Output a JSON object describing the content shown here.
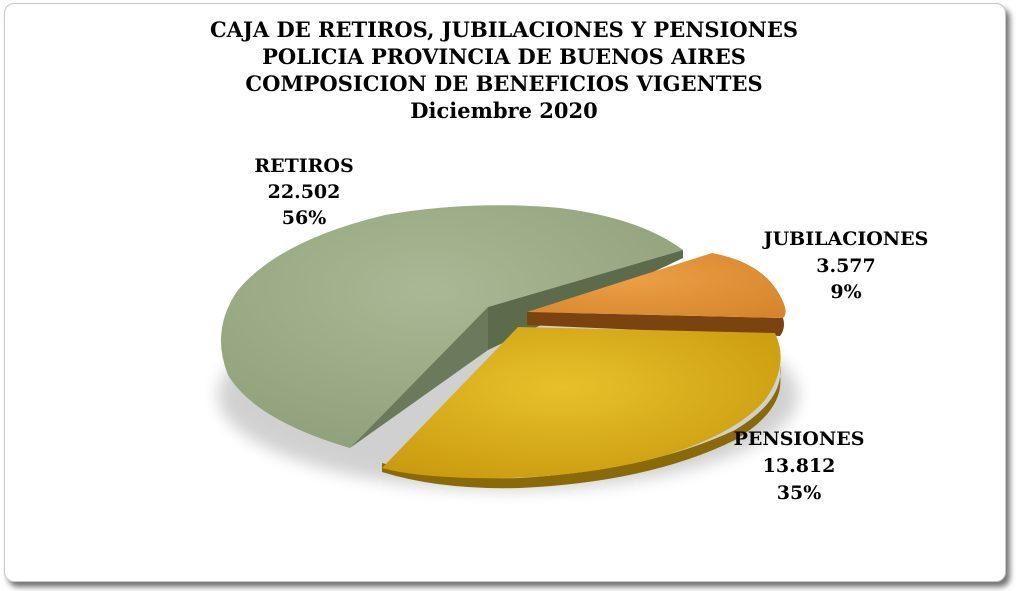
{
  "chart_data": {
    "type": "pie",
    "title_lines": [
      "CAJA DE RETIROS, JUBILACIONES Y PENSIONES",
      "POLICIA PROVINCIA DE BUENOS AIRES",
      "COMPOSICION DE BENEFICIOS VIGENTES",
      "Diciembre 2020"
    ],
    "slices": [
      {
        "label": "RETIROS",
        "value_text": "22.502",
        "value": 22502,
        "percent_text": "56%",
        "color": "#a3b38e"
      },
      {
        "label": "JUBILACIONES",
        "value_text": "3.577",
        "value": 3577,
        "percent_text": "9%",
        "color": "#e8993c"
      },
      {
        "label": "PENSIONES",
        "value_text": "13.812",
        "value": 13812,
        "percent_text": "35%",
        "color": "#dfb51e"
      }
    ],
    "legend": "none"
  }
}
